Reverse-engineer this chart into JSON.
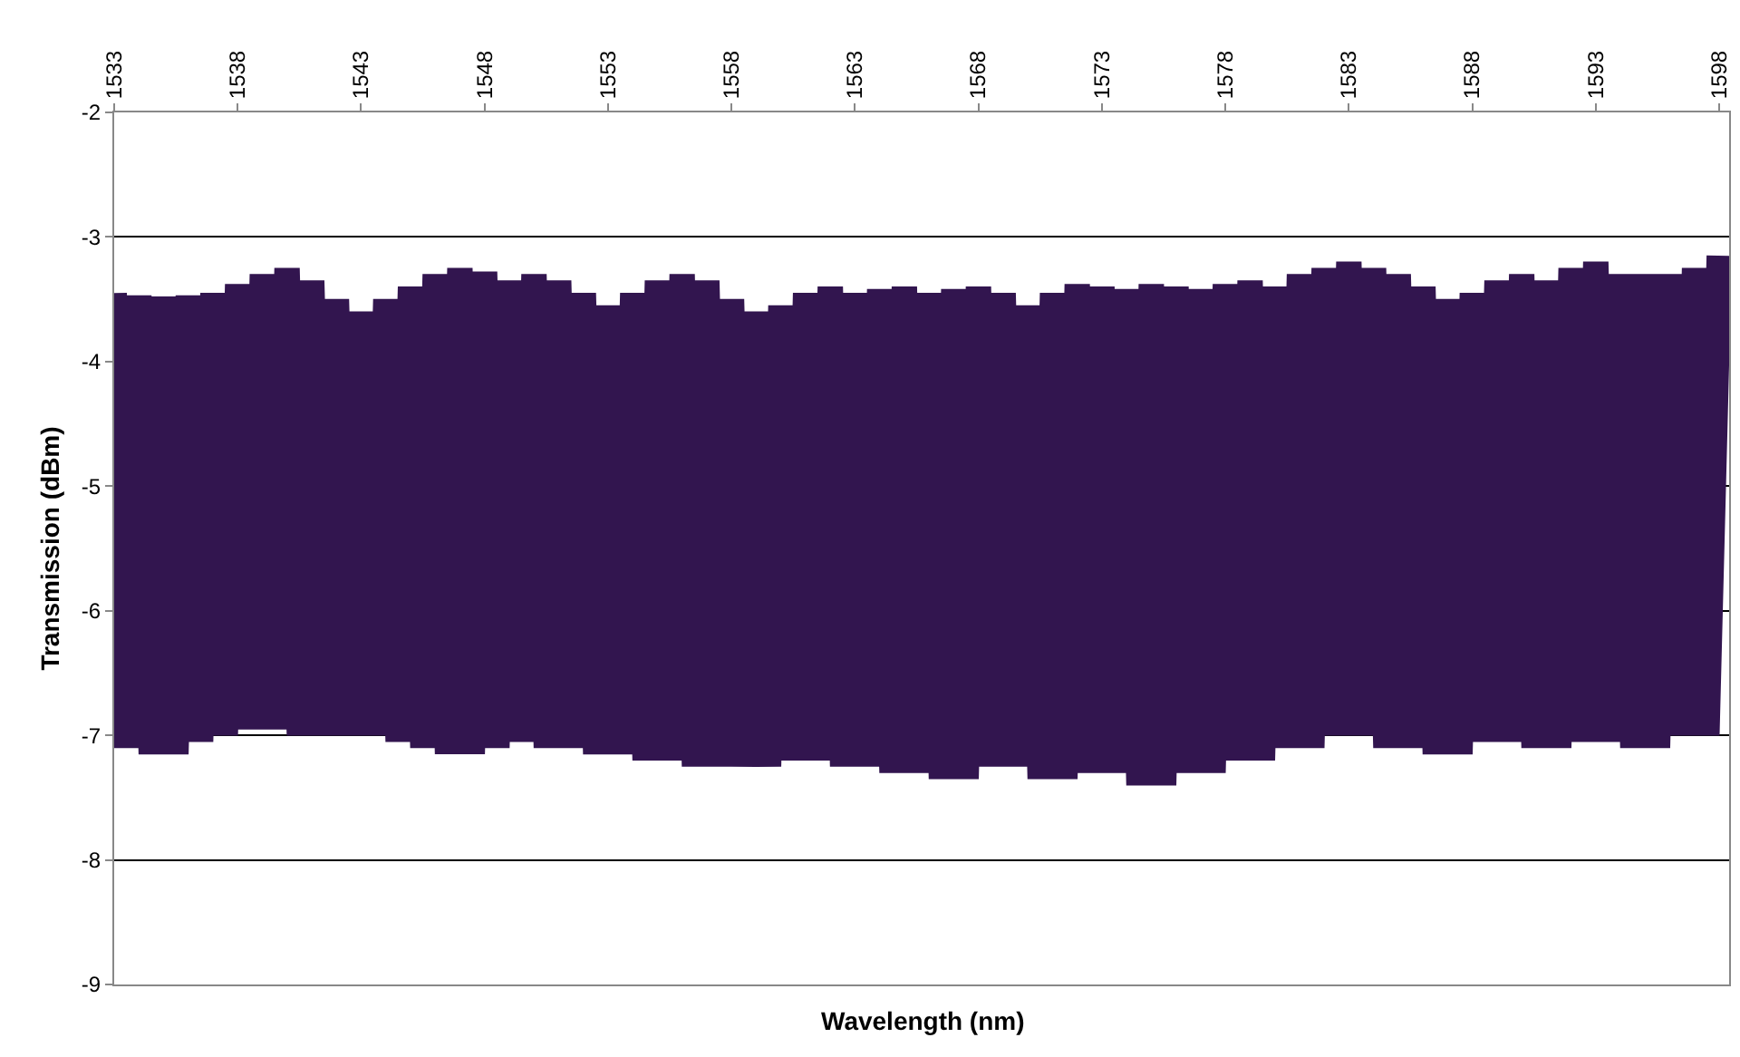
{
  "chart_data": {
    "type": "line",
    "xlabel": "Wavelength (nm)",
    "ylabel": "Transmission (dBm)",
    "x": [
      1533,
      1533.5,
      1534,
      1534.5,
      1535,
      1535.5,
      1536,
      1536.5,
      1537,
      1537.5,
      1538,
      1538.5,
      1539,
      1539.5,
      1540,
      1540.5,
      1541,
      1541.5,
      1542,
      1542.5,
      1543,
      1543.5,
      1544,
      1544.5,
      1545,
      1545.5,
      1546,
      1546.5,
      1547,
      1547.5,
      1548,
      1548.5,
      1549,
      1549.5,
      1550,
      1550.5,
      1551,
      1551.5,
      1552,
      1552.5,
      1553,
      1553.5,
      1554,
      1554.5,
      1555,
      1555.5,
      1556,
      1556.5,
      1557,
      1557.5,
      1558,
      1558.5,
      1559,
      1559.5,
      1560,
      1560.5,
      1561,
      1561.5,
      1562,
      1562.5,
      1563,
      1563.5,
      1564,
      1564.5,
      1565,
      1565.5,
      1566,
      1566.5,
      1567,
      1567.5,
      1568,
      1568.5,
      1569,
      1569.5,
      1570,
      1570.5,
      1571,
      1571.5,
      1572,
      1572.5,
      1573,
      1573.5,
      1574,
      1574.5,
      1575,
      1575.5,
      1576,
      1576.5,
      1577,
      1577.5,
      1578,
      1578.5,
      1579,
      1579.5,
      1580,
      1580.5,
      1581,
      1581.5,
      1582,
      1582.5,
      1583,
      1583.5,
      1584,
      1584.5,
      1585,
      1585.5,
      1586,
      1586.5,
      1587,
      1587.5,
      1588,
      1588.5,
      1589,
      1589.5,
      1590,
      1590.5,
      1591,
      1591.5,
      1592,
      1592.5,
      1593,
      1593.5,
      1594,
      1594.5,
      1595,
      1595.5,
      1596,
      1596.5,
      1597,
      1597.5,
      1598
    ],
    "series": [
      {
        "color": "#32154f",
        "values": [
          -3.45,
          -7.1,
          -3.47,
          -7.15,
          -3.48,
          -7.15,
          -3.47,
          -7.05,
          -3.45,
          -7.0,
          -3.38,
          -6.95,
          -3.3,
          -6.95,
          -3.25,
          -7.0,
          -3.35,
          -7.0,
          -3.5,
          -7.0,
          -3.6,
          -7.0,
          -3.5,
          -7.05,
          -3.4,
          -7.1,
          -3.3,
          -7.15,
          -3.25,
          -7.15,
          -3.28,
          -7.1,
          -3.35,
          -7.05,
          -3.3,
          -7.1,
          -3.35,
          -7.1,
          -3.45,
          -7.15,
          -3.55,
          -7.15,
          -3.45,
          -7.2,
          -3.35,
          -7.2,
          -3.3,
          -7.25,
          -3.35,
          -7.25,
          -3.5,
          -7.25,
          -3.6,
          -7.25,
          -3.55,
          -7.2,
          -3.45,
          -7.2,
          -3.4,
          -7.25,
          -3.45,
          -7.25,
          -3.42,
          -7.3,
          -3.4,
          -7.3,
          -3.45,
          -7.35,
          -3.42,
          -7.35,
          -3.4,
          -7.25,
          -3.45,
          -7.25,
          -3.55,
          -7.35,
          -3.45,
          -7.35,
          -3.38,
          -7.3,
          -3.4,
          -7.3,
          -3.42,
          -7.4,
          -3.38,
          -7.4,
          -3.4,
          -7.3,
          -3.42,
          -7.3,
          -3.38,
          -7.2,
          -3.35,
          -7.2,
          -3.4,
          -7.1,
          -3.3,
          -7.1,
          -3.25,
          -7.0,
          -3.2,
          -7.0,
          -3.25,
          -7.1,
          -3.3,
          -7.1,
          -3.4,
          -7.15,
          -3.5,
          -7.15,
          -3.45,
          -7.05,
          -3.35,
          -7.05,
          -3.3,
          -7.1,
          -3.35,
          -7.1,
          -3.25,
          -7.05,
          -3.2,
          -7.05,
          -3.3,
          -7.1,
          -3.3,
          -7.1,
          -3.3,
          -7.0,
          -3.25,
          -7.0,
          -3.15
        ]
      }
    ],
    "xlim": [
      1533,
      1598.4
    ],
    "xticks": [
      1533,
      1538,
      1543,
      1548,
      1553,
      1558,
      1563,
      1568,
      1573,
      1578,
      1583,
      1588,
      1593,
      1598
    ],
    "ylim": [
      -9,
      -2
    ],
    "yticks": [
      -9,
      -8,
      -7,
      -6,
      -5,
      -4,
      -3,
      -2
    ],
    "grid": "y",
    "marker": "none",
    "line_style": "solid"
  }
}
